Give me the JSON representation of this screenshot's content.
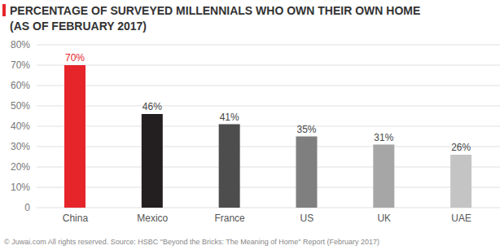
{
  "chart_data": {
    "type": "bar",
    "title": "PERCENTAGE OF SURVEYED MILLENNIALS WHO OWN THEIR OWN HOME",
    "subtitle": "(AS OF FEBRUARY 2017)",
    "categories": [
      "China",
      "Mexico",
      "France",
      "US",
      "UK",
      "UAE"
    ],
    "values": [
      70,
      46,
      41,
      35,
      31,
      26
    ],
    "value_labels": [
      "70%",
      "46%",
      "41%",
      "35%",
      "31%",
      "26%"
    ],
    "colors": [
      "#e5252a",
      "#231f20",
      "#4d4d4d",
      "#7f7f7f",
      "#a6a6a6",
      "#c4c4c4"
    ],
    "ylim": [
      0,
      80
    ],
    "yticks": [
      0,
      {
        "value": 10,
        "label": "10%"
      },
      {
        "value": 20,
        "label": "20%"
      },
      {
        "value": 30,
        "label": "30%"
      },
      {
        "value": 40,
        "label": "40%"
      },
      {
        "value": 50,
        "label": "50%"
      },
      {
        "value": 60,
        "label": "60%"
      },
      {
        "value": 70,
        "label": "70%"
      },
      {
        "value": 80,
        "label": "80%"
      }
    ],
    "grid": true,
    "data_labels": true,
    "source": "© Juwai.com All rights reserved. Source: HSBC \"Beyond the Bricks: The Meaning of Home\" Report (February 2017)"
  }
}
